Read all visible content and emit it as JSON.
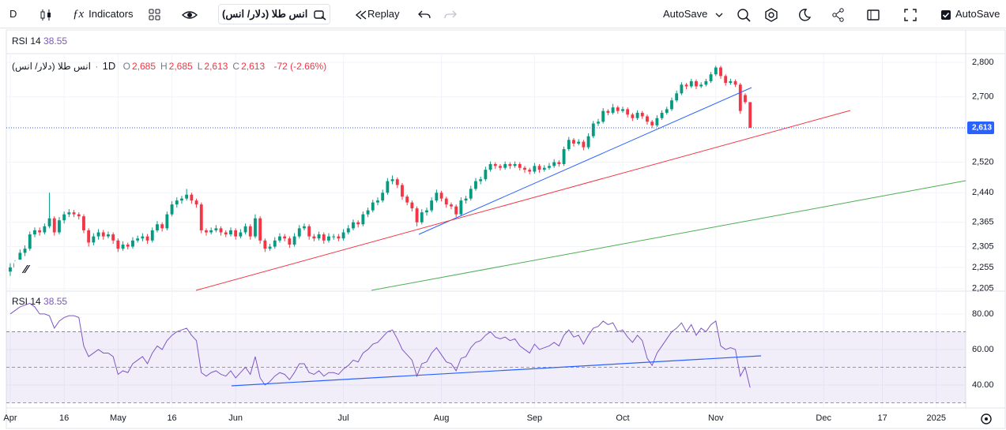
{
  "toolbar": {
    "interval": "D",
    "indicators": "Indicators",
    "symbol": "انس طلا (دلار/ انس)",
    "replay": "Replay",
    "autosave_menu": "AutoSave",
    "autosave_checkbox": "AutoSave"
  },
  "chart_data": {
    "type": "candlestick",
    "legend": {
      "symbol": "انس طلا (دلار/ انس)",
      "interval": "1D",
      "fields": [
        {
          "key": "O",
          "value": "2,685"
        },
        {
          "key": "H",
          "value": "2,685"
        },
        {
          "key": "L",
          "value": "2,613"
        },
        {
          "key": "C",
          "value": "2,613"
        }
      ],
      "change": "-72 (-2.66%)"
    },
    "up_color": "#089981",
    "down_color": "#f23645",
    "log_scale": true,
    "grid": true,
    "ylim": [
      2201,
      2826
    ],
    "yticks": [
      {
        "value": 2800,
        "label": "2,800"
      },
      {
        "value": 2700,
        "label": "2,700"
      },
      {
        "value": 2520,
        "label": "2,520"
      },
      {
        "value": 2440,
        "label": "2,440"
      },
      {
        "value": 2365,
        "label": "2,365"
      },
      {
        "value": 2305,
        "label": "2,305"
      },
      {
        "value": 2255,
        "label": "2,255"
      },
      {
        "value": 2205,
        "label": "2,205"
      }
    ],
    "last_price": {
      "value": 2613,
      "label": "2,613"
    },
    "xlim": [
      -0.8,
      195
    ],
    "xticks": [
      {
        "value": 0,
        "label": "Apr"
      },
      {
        "value": 11,
        "label": "16"
      },
      {
        "value": 22,
        "label": "May"
      },
      {
        "value": 33,
        "label": "16"
      },
      {
        "value": 46,
        "label": "Jun"
      },
      {
        "value": 68,
        "label": "Jul"
      },
      {
        "value": 88,
        "label": "Aug"
      },
      {
        "value": 107,
        "label": "Sep"
      },
      {
        "value": 125,
        "label": "Oct"
      },
      {
        "value": 144,
        "label": "Nov"
      },
      {
        "value": 166,
        "label": "Dec"
      },
      {
        "value": 178,
        "label": "17"
      },
      {
        "value": 189,
        "label": "2025"
      }
    ],
    "candles": [
      [
        2245,
        2265,
        2235,
        2255
      ],
      [
        2255,
        2272,
        2250,
        2265
      ],
      [
        2265,
        2298,
        2260,
        2290
      ],
      [
        2290,
        2308,
        2282,
        2300
      ],
      [
        2300,
        2342,
        2295,
        2335
      ],
      [
        2335,
        2352,
        2328,
        2345
      ],
      [
        2345,
        2352,
        2332,
        2340
      ],
      [
        2340,
        2362,
        2335,
        2355
      ],
      [
        2355,
        2440,
        2350,
        2375
      ],
      [
        2375,
        2380,
        2332,
        2340
      ],
      [
        2340,
        2378,
        2335,
        2370
      ],
      [
        2370,
        2392,
        2362,
        2385
      ],
      [
        2385,
        2398,
        2378,
        2390
      ],
      [
        2390,
        2396,
        2378,
        2385
      ],
      [
        2385,
        2390,
        2372,
        2380
      ],
      [
        2380,
        2385,
        2338,
        2345
      ],
      [
        2345,
        2350,
        2305,
        2315
      ],
      [
        2315,
        2338,
        2308,
        2330
      ],
      [
        2330,
        2348,
        2322,
        2340
      ],
      [
        2340,
        2346,
        2322,
        2330
      ],
      [
        2330,
        2342,
        2325,
        2335
      ],
      [
        2335,
        2340,
        2312,
        2320
      ],
      [
        2320,
        2325,
        2292,
        2300
      ],
      [
        2300,
        2318,
        2295,
        2310
      ],
      [
        2310,
        2315,
        2298,
        2305
      ],
      [
        2305,
        2328,
        2300,
        2320
      ],
      [
        2320,
        2332,
        2315,
        2325
      ],
      [
        2325,
        2338,
        2318,
        2330
      ],
      [
        2330,
        2336,
        2312,
        2320
      ],
      [
        2320,
        2352,
        2315,
        2345
      ],
      [
        2345,
        2368,
        2340,
        2360
      ],
      [
        2360,
        2365,
        2342,
        2350
      ],
      [
        2350,
        2392,
        2345,
        2385
      ],
      [
        2385,
        2418,
        2380,
        2410
      ],
      [
        2410,
        2428,
        2402,
        2420
      ],
      [
        2420,
        2432,
        2412,
        2425
      ],
      [
        2425,
        2450,
        2420,
        2435
      ],
      [
        2435,
        2440,
        2412,
        2420
      ],
      [
        2420,
        2425,
        2402,
        2410
      ],
      [
        2410,
        2415,
        2338,
        2345
      ],
      [
        2345,
        2350,
        2332,
        2340
      ],
      [
        2340,
        2352,
        2335,
        2345
      ],
      [
        2345,
        2358,
        2340,
        2350
      ],
      [
        2350,
        2355,
        2332,
        2340
      ],
      [
        2340,
        2345,
        2328,
        2335
      ],
      [
        2335,
        2352,
        2330,
        2345
      ],
      [
        2345,
        2350,
        2322,
        2330
      ],
      [
        2330,
        2348,
        2325,
        2340
      ],
      [
        2340,
        2362,
        2335,
        2355
      ],
      [
        2355,
        2360,
        2322,
        2330
      ],
      [
        2330,
        2385,
        2325,
        2375
      ],
      [
        2375,
        2380,
        2312,
        2320
      ],
      [
        2320,
        2325,
        2292,
        2300
      ],
      [
        2300,
        2312,
        2295,
        2305
      ],
      [
        2305,
        2328,
        2300,
        2320
      ],
      [
        2320,
        2338,
        2315,
        2330
      ],
      [
        2330,
        2336,
        2318,
        2325
      ],
      [
        2325,
        2330,
        2302,
        2310
      ],
      [
        2310,
        2338,
        2305,
        2330
      ],
      [
        2330,
        2358,
        2325,
        2350
      ],
      [
        2350,
        2362,
        2345,
        2355
      ],
      [
        2355,
        2360,
        2322,
        2330
      ],
      [
        2330,
        2336,
        2318,
        2325
      ],
      [
        2325,
        2342,
        2320,
        2335
      ],
      [
        2335,
        2340,
        2312,
        2320
      ],
      [
        2320,
        2338,
        2315,
        2330
      ],
      [
        2330,
        2336,
        2322,
        2330
      ],
      [
        2330,
        2336,
        2318,
        2325
      ],
      [
        2325,
        2348,
        2320,
        2340
      ],
      [
        2340,
        2358,
        2335,
        2350
      ],
      [
        2350,
        2372,
        2345,
        2365
      ],
      [
        2365,
        2370,
        2352,
        2360
      ],
      [
        2360,
        2392,
        2355,
        2385
      ],
      [
        2385,
        2402,
        2378,
        2395
      ],
      [
        2395,
        2422,
        2390,
        2415
      ],
      [
        2415,
        2428,
        2408,
        2420
      ],
      [
        2420,
        2448,
        2415,
        2440
      ],
      [
        2440,
        2478,
        2435,
        2470
      ],
      [
        2470,
        2485,
        2462,
        2475
      ],
      [
        2475,
        2480,
        2452,
        2460
      ],
      [
        2460,
        2465,
        2422,
        2430
      ],
      [
        2430,
        2435,
        2408,
        2415
      ],
      [
        2415,
        2420,
        2392,
        2400
      ],
      [
        2400,
        2405,
        2355,
        2365
      ],
      [
        2365,
        2398,
        2360,
        2390
      ],
      [
        2390,
        2402,
        2382,
        2395
      ],
      [
        2395,
        2428,
        2390,
        2420
      ],
      [
        2420,
        2448,
        2415,
        2440
      ],
      [
        2440,
        2445,
        2418,
        2425
      ],
      [
        2425,
        2430,
        2402,
        2410
      ],
      [
        2410,
        2415,
        2398,
        2405
      ],
      [
        2405,
        2410,
        2378,
        2385
      ],
      [
        2385,
        2428,
        2380,
        2420
      ],
      [
        2420,
        2432,
        2412,
        2425
      ],
      [
        2425,
        2458,
        2420,
        2450
      ],
      [
        2450,
        2478,
        2445,
        2470
      ],
      [
        2470,
        2482,
        2462,
        2475
      ],
      [
        2475,
        2508,
        2470,
        2500
      ],
      [
        2500,
        2522,
        2495,
        2515
      ],
      [
        2515,
        2520,
        2502,
        2510
      ],
      [
        2510,
        2515,
        2498,
        2505
      ],
      [
        2505,
        2522,
        2500,
        2515
      ],
      [
        2515,
        2520,
        2502,
        2510
      ],
      [
        2510,
        2522,
        2505,
        2515
      ],
      [
        2515,
        2520,
        2498,
        2505
      ],
      [
        2505,
        2510,
        2492,
        2500
      ],
      [
        2500,
        2505,
        2488,
        2495
      ],
      [
        2495,
        2518,
        2490,
        2510
      ],
      [
        2510,
        2515,
        2492,
        2500
      ],
      [
        2500,
        2512,
        2495,
        2505
      ],
      [
        2505,
        2518,
        2500,
        2510
      ],
      [
        2510,
        2528,
        2505,
        2520
      ],
      [
        2520,
        2525,
        2508,
        2515
      ],
      [
        2515,
        2562,
        2510,
        2555
      ],
      [
        2555,
        2588,
        2550,
        2580
      ],
      [
        2580,
        2585,
        2562,
        2570
      ],
      [
        2570,
        2582,
        2565,
        2575
      ],
      [
        2575,
        2580,
        2552,
        2560
      ],
      [
        2560,
        2598,
        2555,
        2590
      ],
      [
        2590,
        2632,
        2585,
        2625
      ],
      [
        2625,
        2638,
        2618,
        2630
      ],
      [
        2630,
        2668,
        2625,
        2660
      ],
      [
        2660,
        2665,
        2648,
        2655
      ],
      [
        2655,
        2680,
        2650,
        2670
      ],
      [
        2670,
        2675,
        2652,
        2660
      ],
      [
        2660,
        2672,
        2655,
        2665
      ],
      [
        2665,
        2670,
        2642,
        2650
      ],
      [
        2650,
        2655,
        2632,
        2640
      ],
      [
        2640,
        2662,
        2635,
        2655
      ],
      [
        2655,
        2660,
        2638,
        2645
      ],
      [
        2645,
        2650,
        2622,
        2630
      ],
      [
        2630,
        2635,
        2612,
        2620
      ],
      [
        2620,
        2648,
        2615,
        2640
      ],
      [
        2640,
        2662,
        2635,
        2655
      ],
      [
        2655,
        2672,
        2650,
        2665
      ],
      [
        2665,
        2698,
        2660,
        2690
      ],
      [
        2690,
        2718,
        2685,
        2710
      ],
      [
        2710,
        2742,
        2705,
        2735
      ],
      [
        2735,
        2740,
        2722,
        2730
      ],
      [
        2730,
        2752,
        2725,
        2745
      ],
      [
        2745,
        2750,
        2722,
        2730
      ],
      [
        2730,
        2742,
        2725,
        2735
      ],
      [
        2735,
        2752,
        2730,
        2745
      ],
      [
        2745,
        2772,
        2740,
        2765
      ],
      [
        2765,
        2790,
        2760,
        2785
      ],
      [
        2785,
        2790,
        2752,
        2760
      ],
      [
        2760,
        2765,
        2732,
        2740
      ],
      [
        2740,
        2752,
        2735,
        2745
      ],
      [
        2745,
        2750,
        2728,
        2735
      ],
      [
        2735,
        2740,
        2652,
        2660
      ],
      [
        2705,
        2710,
        2680,
        2685
      ],
      [
        2685,
        2685,
        2613,
        2613
      ]
    ],
    "rsi": {
      "name": "RSI 14",
      "value_label": "38.55",
      "color": "#7e57c2",
      "ylim": [
        28,
        92.4
      ],
      "yticks": [
        {
          "value": 80,
          "label": "80.00"
        },
        {
          "value": 60,
          "label": "60.00"
        },
        {
          "value": 40,
          "label": "40.00"
        }
      ],
      "levels": [
        30,
        50,
        70
      ],
      "values": [
        80,
        82,
        84,
        85,
        86,
        84,
        80,
        80,
        79,
        72,
        76,
        78,
        79,
        79,
        78,
        62,
        56,
        58,
        60,
        58,
        58,
        56,
        46,
        48,
        47,
        52,
        54,
        56,
        52,
        58,
        62,
        60,
        65,
        68,
        70,
        71,
        72,
        68,
        65,
        47,
        45,
        47,
        48,
        46,
        45,
        48,
        44,
        47,
        50,
        46,
        56,
        44,
        40,
        42,
        45,
        47,
        46,
        43,
        47,
        52,
        52,
        47,
        46,
        48,
        45,
        47,
        47,
        46,
        49,
        51,
        54,
        53,
        58,
        60,
        63,
        64,
        67,
        70,
        71,
        66,
        60,
        57,
        54,
        45,
        52,
        53,
        58,
        61,
        57,
        53,
        52,
        48,
        55,
        56,
        61,
        64,
        65,
        68,
        70,
        67,
        66,
        67,
        65,
        66,
        62,
        60,
        58,
        63,
        60,
        61,
        62,
        64,
        62,
        68,
        71,
        67,
        68,
        63,
        68,
        72,
        73,
        76,
        74,
        75,
        70,
        71,
        67,
        64,
        68,
        65,
        55,
        51,
        58,
        62,
        66,
        70,
        72,
        75,
        70,
        74,
        68,
        72,
        70,
        74,
        76,
        62,
        60,
        61,
        60,
        45,
        50,
        38.55
      ]
    }
  }
}
